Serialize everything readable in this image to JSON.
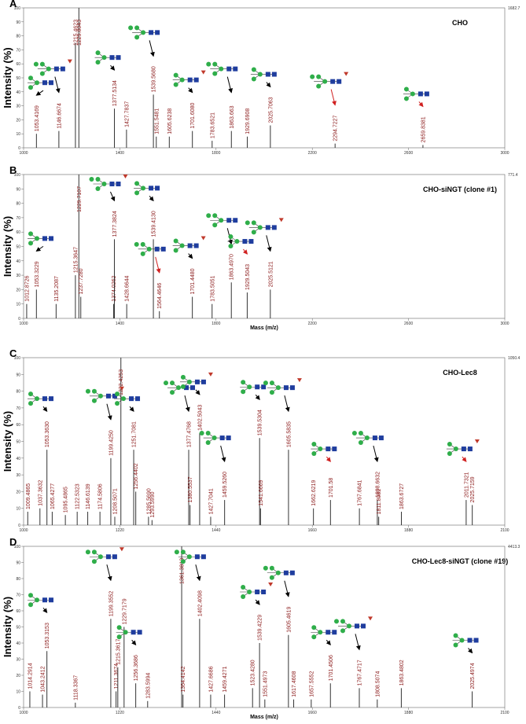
{
  "chart_data": [
    {
      "type": "spectrum",
      "panel": "A",
      "title": "CHO",
      "ylabel": "Intensity (%)",
      "max_intensity": 1682.7,
      "xlim": [
        1000,
        3000
      ],
      "xticks": [
        1000,
        1400,
        1800,
        2200,
        2600,
        3000
      ],
      "ylim": [
        0,
        100
      ],
      "yticks": [
        0,
        10,
        20,
        30,
        40,
        50,
        60,
        70,
        80,
        90,
        100
      ],
      "x": [
        1053.4169,
        1146.6674,
        1215.4623,
        1229.8043,
        1377.5134,
        1427.7837,
        1539.568,
        1551.5481,
        1605.6238,
        1701.608,
        1783.6521,
        1863.663,
        1929.6908,
        2025.7063,
        2294.7227,
        2659.8381
      ],
      "x_labels": [
        "1053.4169",
        "1146.6674",
        "1215.4623",
        "1229.8043",
        "1377.5134",
        "1427.7837",
        "1539.5680",
        "1551.5481",
        "1605.6238",
        "1701.6080",
        "1783.6521",
        "1863.663",
        "1929.6908",
        "2025.7063",
        "2294.7227",
        "2659.8381"
      ],
      "values": [
        10,
        12,
        75,
        100,
        28,
        13,
        38,
        8,
        8,
        12,
        5,
        12,
        8,
        16,
        3,
        2
      ]
    },
    {
      "type": "spectrum",
      "panel": "B",
      "title": "CHO-siNGT (clone #1)",
      "ylabel": "Intensity (%)",
      "xlabel": "Mass (m/z)",
      "max_intensity": 771.4,
      "xlim": [
        1000,
        3000
      ],
      "xticks": [
        1000,
        1400,
        1800,
        2200,
        2600,
        3000
      ],
      "ylim": [
        0,
        100
      ],
      "yticks": [
        0,
        10,
        20,
        30,
        40,
        50,
        60,
        70,
        80,
        90,
        100
      ],
      "x": [
        1012.8726,
        1053.3229,
        1135.2087,
        1215.3647,
        1229.7107,
        1237.728,
        1374.0262,
        1377.3824,
        1428.6644,
        1539.413,
        1564.4646,
        1701.448,
        1783.5051,
        1863.497,
        1929.5043,
        2025.5121
      ],
      "x_labels": [
        "1012.8726",
        "1053.3229",
        "1135.2087",
        "1215.3647",
        "1229.7107",
        "1237.7280",
        "1374.0262",
        "1377.3824",
        "1428.6644",
        "1539.4130",
        "1564.4646",
        "1701.4480",
        "1783.5051",
        "1863.4970",
        "1929.5043",
        "2025.5121"
      ],
      "values": [
        10,
        20,
        10,
        30,
        100,
        15,
        10,
        55,
        10,
        55,
        5,
        15,
        10,
        25,
        18,
        20
      ]
    },
    {
      "type": "spectrum",
      "panel": "C",
      "title": "CHO-Lec8",
      "ylabel": "Intensity (%)",
      "max_intensity": 1050.4,
      "xlim": [
        1000,
        2100
      ],
      "xticks": [
        1000,
        1220,
        1440,
        1660,
        1880,
        2100
      ],
      "ylim": [
        0,
        100
      ],
      "yticks": [
        0,
        10,
        20,
        30,
        40,
        50,
        60,
        70,
        80,
        90,
        100
      ],
      "x": [
        1009.4865,
        1037.3632,
        1053.363,
        1065.4277,
        1095.4865,
        1122.5323,
        1146.6139,
        1174.5806,
        1199.425,
        1208.5071,
        1222.4253,
        1251.7081,
        1256.4402,
        1285.569,
        1293.599,
        1377.4768,
        1380.5537,
        1402.5043,
        1427.7041,
        1459.526,
        1539.5304,
        1541.6669,
        1605.5835,
        1662.6219,
        1701.58,
        1767.6841,
        1808.6632,
        1811.8082,
        1863.6727,
        2011.7321,
        2025.7159
      ],
      "x_labels": [
        "1009.4865",
        "1037.3632",
        "1053.3630",
        "1065.4277",
        "1095.4865",
        "1122.5323",
        "1146.6139",
        "1174.5806",
        "1199.4250",
        "1208.5071",
        "1222.4253",
        "1251.7081",
        "1256.4402",
        "1285.5690",
        "1293.5990",
        "1377.4768",
        "1380.5537",
        "1402.5043",
        "1427.7041",
        "1459.5260",
        "1539.5304",
        "1541.6669",
        "1605.5835",
        "1662.6219",
        "1701.58",
        "1767.6841",
        "1808.6632",
        "1811.8082",
        "1863.6727",
        "2011.7321",
        "2025.7159"
      ],
      "values": [
        8,
        10,
        45,
        8,
        6,
        8,
        8,
        8,
        40,
        5,
        100,
        45,
        20,
        5,
        3,
        45,
        12,
        55,
        5,
        15,
        52,
        10,
        45,
        10,
        15,
        10,
        15,
        5,
        8,
        15,
        12
      ]
    },
    {
      "type": "spectrum",
      "panel": "D",
      "title": "CHO-Lec8-siNGT (clone #19)",
      "ylabel": "Intensity (%)",
      "xlabel": "Mass (m/z)",
      "max_intensity": 4413.3,
      "xlim": [
        1000,
        2100
      ],
      "xticks": [
        1000,
        1220,
        1440,
        1660,
        1880,
        2100
      ],
      "ylim": [
        0,
        100
      ],
      "yticks": [
        0,
        10,
        20,
        30,
        40,
        50,
        60,
        70,
        80,
        90,
        100
      ],
      "x": [
        1014.2914,
        1043.2412,
        1053.3153,
        1118.3367,
        1199.3552,
        1211.3674,
        1215.3617,
        1229.7179,
        1256.3686,
        1283.5994,
        1361.3813,
        1364.4142,
        1402.4098,
        1427.6686,
        1459.4271,
        1523.428,
        1539.4229,
        1551.4973,
        1605.4619,
        1617.4608,
        1657.5552,
        1701.4506,
        1767.4717,
        1808.5074,
        1863.4802,
        2025.4974
      ],
      "x_labels": [
        "1014.2914",
        "1043.2412",
        "1053.3153",
        "1118.3367",
        "1199.3552",
        "1211.3674",
        "1215.3617",
        "1229.7179",
        "1256.3686",
        "1283.5994",
        "1361.3813",
        "1364.4142",
        "1402.4098",
        "1427.6686",
        "1459.4271",
        "1523.4280",
        "1539.4229",
        "1551.4973",
        "1605.4619",
        "1617.4608",
        "1657.5552",
        "1701.4506",
        "1767.4717",
        "1808.5074",
        "1863.4802",
        "2025.4974"
      ],
      "values": [
        10,
        8,
        35,
        3,
        55,
        10,
        25,
        50,
        15,
        4,
        100,
        8,
        55,
        8,
        8,
        12,
        40,
        5,
        45,
        5,
        5,
        15,
        12,
        5,
        12,
        10
      ]
    }
  ]
}
